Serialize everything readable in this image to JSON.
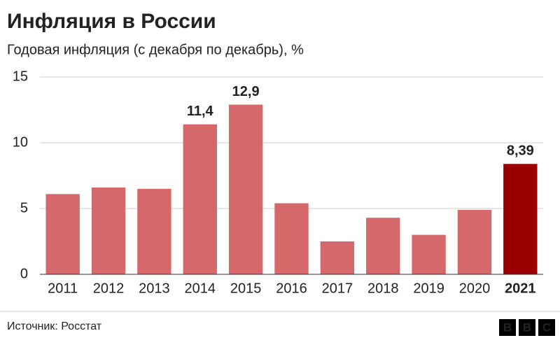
{
  "chart_data": {
    "type": "bar",
    "title": "Инфляция в России",
    "subtitle": "Годовая инфляция (с декабря по декабрь), %",
    "categories": [
      "2011",
      "2012",
      "2013",
      "2014",
      "2015",
      "2016",
      "2017",
      "2018",
      "2019",
      "2020",
      "2021"
    ],
    "values": [
      6.1,
      6.6,
      6.5,
      11.4,
      12.9,
      5.4,
      2.5,
      4.3,
      3.0,
      4.9,
      8.39
    ],
    "value_labels": [
      null,
      null,
      null,
      "11,4",
      "12,9",
      null,
      null,
      null,
      null,
      null,
      "8,39"
    ],
    "color": "#d5686a",
    "colors": [
      "#d5686a",
      "#d5686a",
      "#d5686a",
      "#d5686a",
      "#d5686a",
      "#d5686a",
      "#d5686a",
      "#d5686a",
      "#d5686a",
      "#d5686a",
      "#990000"
    ],
    "ylim": [
      0,
      15
    ],
    "yticks": [
      0,
      5,
      10,
      15
    ],
    "grid": true,
    "source": "Источник: Росстат",
    "logo": [
      "B",
      "B",
      "C"
    ]
  }
}
